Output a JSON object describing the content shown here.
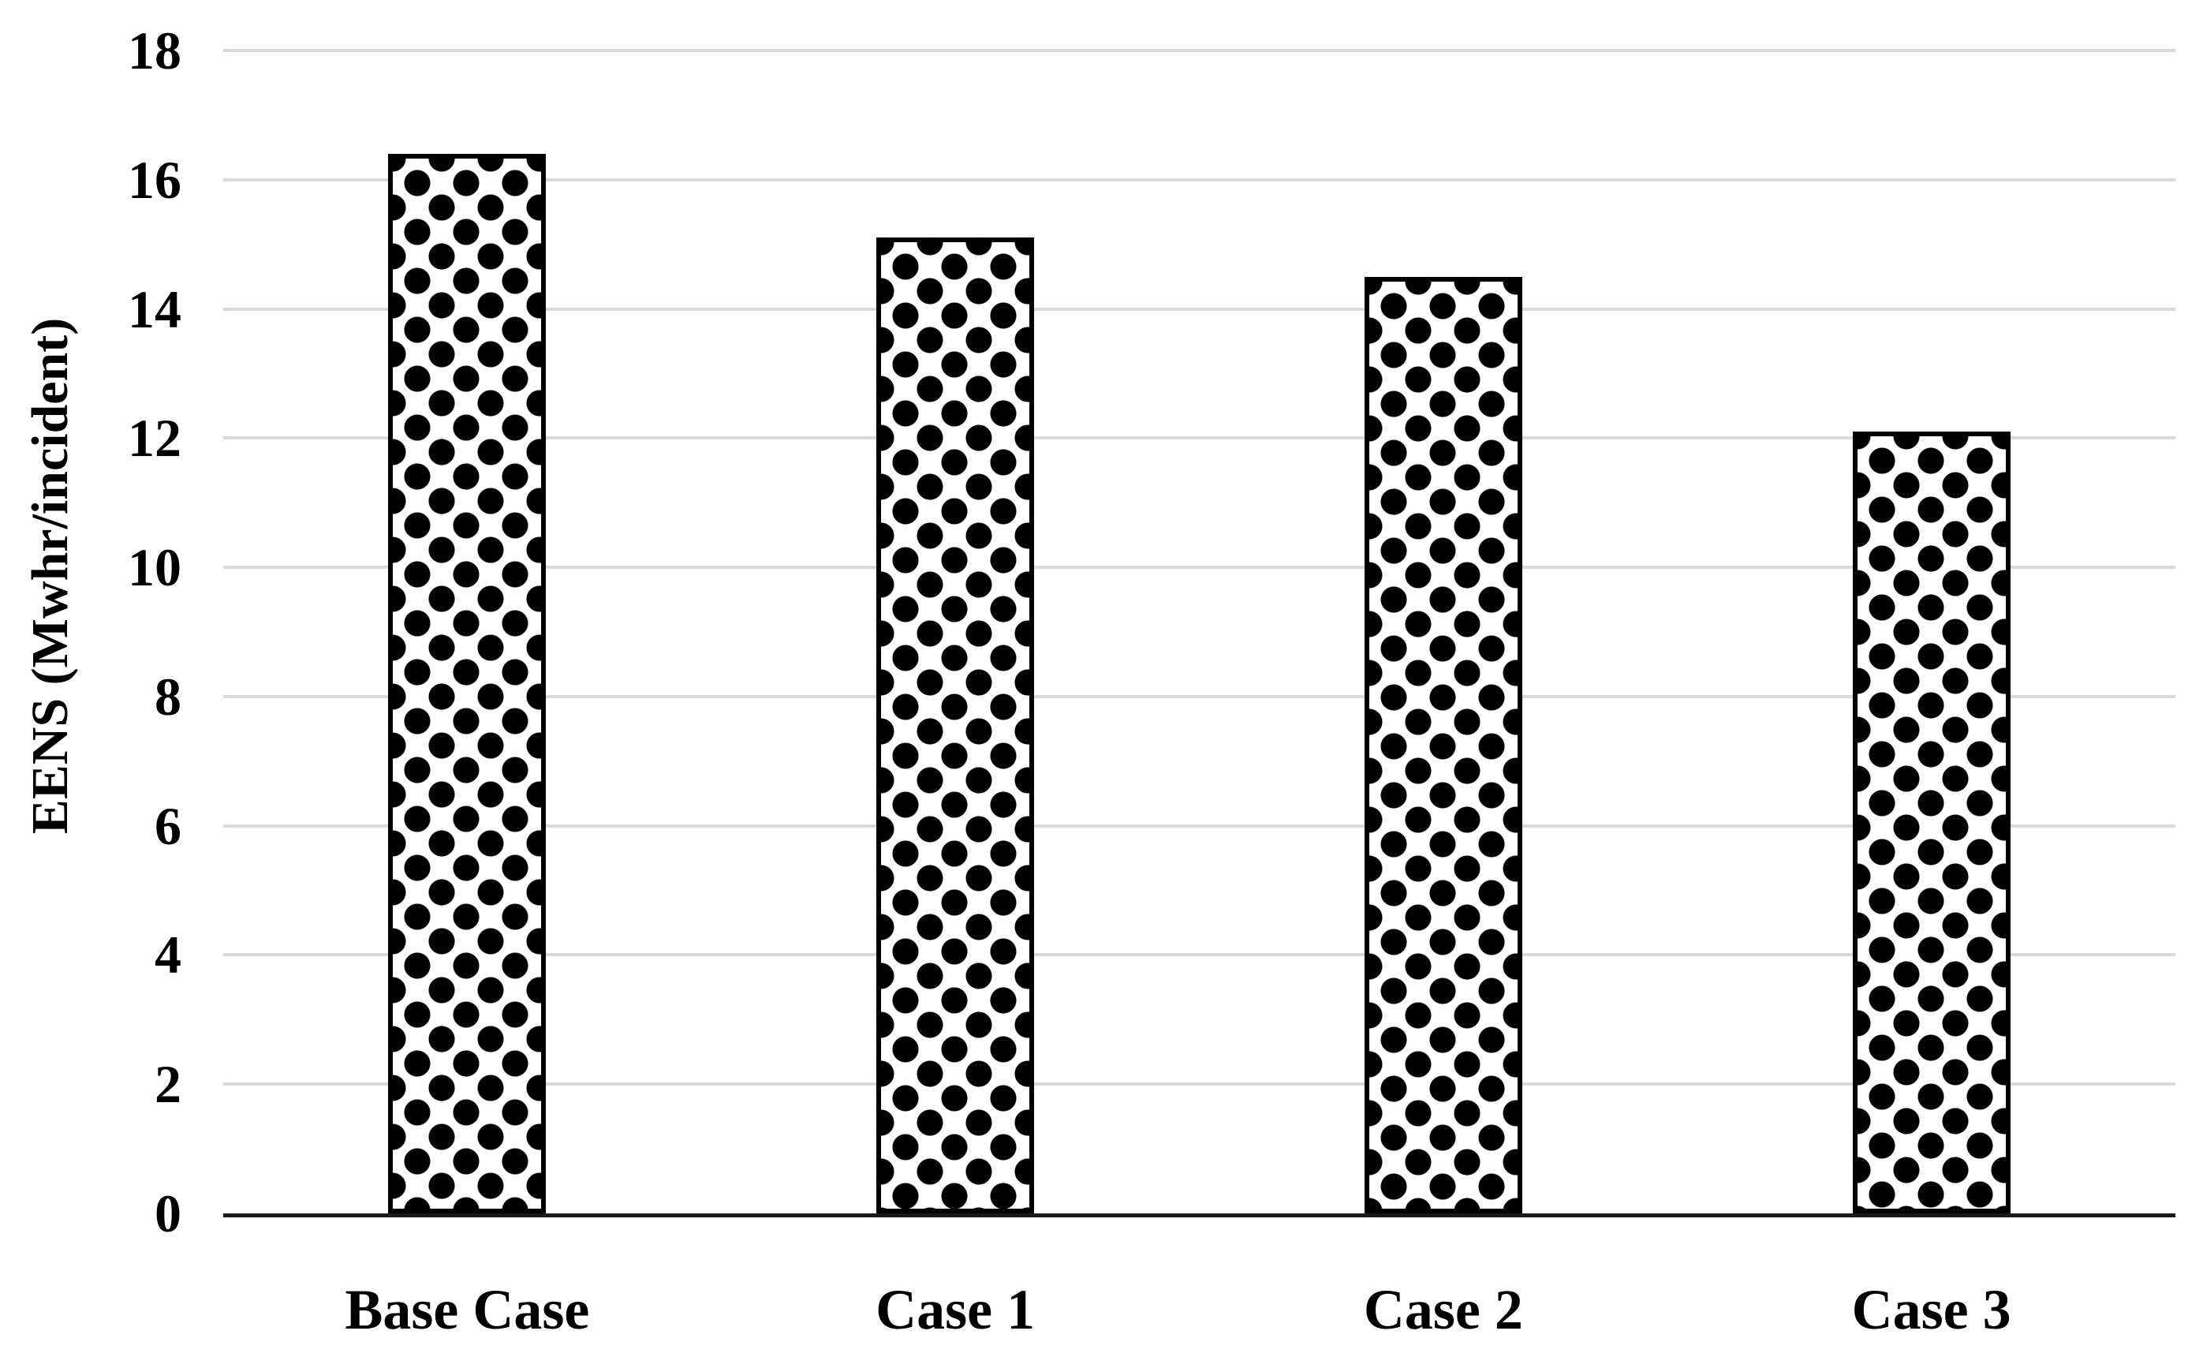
{
  "chart_data": {
    "type": "bar",
    "title": "",
    "categories": [
      "Base Case",
      "Case 1",
      "Case 2",
      "Case 3"
    ],
    "values": [
      16.4,
      15.1,
      14.5,
      12.1
    ],
    "series": [
      {
        "name": "EENS",
        "values": [
          16.4,
          15.1,
          14.5,
          12.1
        ]
      }
    ],
    "xlabel": "",
    "ylabel": "EENS (Mwhr/incident)",
    "ylim": [
      0,
      18
    ],
    "ytick_step": 2,
    "yticks": [
      0,
      2,
      4,
      6,
      8,
      10,
      12,
      14,
      16,
      18
    ],
    "grid": "horizontal-light-gray",
    "legend_position": "none",
    "bar_pattern": "black polka dots on white fill with black outline"
  },
  "colors": {
    "background": "#ffffff",
    "text": "#000000",
    "gridline": "#d9d9d9",
    "axis_line": "#1a1a1a",
    "bar_fill": "#ffffff",
    "bar_dot": "#000000",
    "bar_border": "#000000"
  }
}
